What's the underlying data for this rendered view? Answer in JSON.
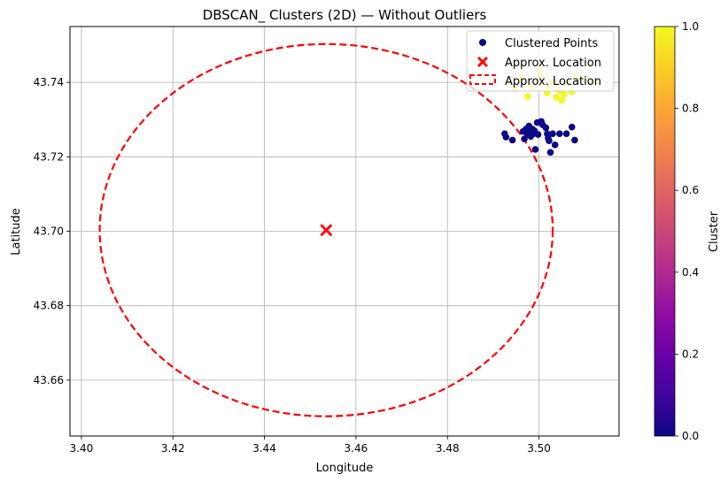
{
  "chart_data": {
    "type": "scatter",
    "title": "DBSCAN_ Clusters (2D) — Without Outliers",
    "xlabel": "Longitude",
    "ylabel": "Latitude",
    "xlim": [
      3.3975,
      3.5175
    ],
    "ylim": [
      43.645,
      43.755
    ],
    "xticks": [
      3.4,
      3.42,
      3.44,
      3.46,
      3.48,
      3.5
    ],
    "xtick_labels": [
      "3.40",
      "3.42",
      "3.44",
      "3.46",
      "3.48",
      "3.50"
    ],
    "yticks": [
      43.66,
      43.68,
      43.7,
      43.72,
      43.74
    ],
    "ytick_labels": [
      "43.66",
      "43.68",
      "43.70",
      "43.72",
      "43.74"
    ],
    "grid": true,
    "legend_position": "top-right",
    "legend": [
      {
        "label": "Clustered Points",
        "marker": "dot",
        "color": "#0d0887"
      },
      {
        "label": "Approx. Location",
        "marker": "x",
        "color": "#ff0000"
      },
      {
        "label": "Approx. Location",
        "marker": "dashed-ellipse",
        "color": "#ff0000"
      }
    ],
    "series": [
      {
        "name": "Clustered Points",
        "kind": "scatter",
        "points": [
          {
            "x": 3.4925,
            "y": 43.7262,
            "c": 0
          },
          {
            "x": 3.4928,
            "y": 43.7253,
            "c": 0
          },
          {
            "x": 3.4942,
            "y": 43.7245,
            "c": 0
          },
          {
            "x": 3.4965,
            "y": 43.7268,
            "c": 0
          },
          {
            "x": 3.4968,
            "y": 43.7248,
            "c": 0
          },
          {
            "x": 3.4972,
            "y": 43.7275,
            "c": 0
          },
          {
            "x": 3.4975,
            "y": 43.726,
            "c": 0
          },
          {
            "x": 3.4978,
            "y": 43.7283,
            "c": 0
          },
          {
            "x": 3.498,
            "y": 43.7266,
            "c": 0
          },
          {
            "x": 3.4982,
            "y": 43.7255,
            "c": 0
          },
          {
            "x": 3.4985,
            "y": 43.7275,
            "c": 0
          },
          {
            "x": 3.4988,
            "y": 43.7262,
            "c": 0
          },
          {
            "x": 3.499,
            "y": 43.727,
            "c": 0
          },
          {
            "x": 3.4992,
            "y": 43.722,
            "c": 0
          },
          {
            "x": 3.4996,
            "y": 43.7292,
            "c": 0
          },
          {
            "x": 3.4998,
            "y": 43.726,
            "c": 0
          },
          {
            "x": 3.5005,
            "y": 43.7295,
            "c": 0
          },
          {
            "x": 3.5008,
            "y": 43.7286,
            "c": 0
          },
          {
            "x": 3.5015,
            "y": 43.7278,
            "c": 0
          },
          {
            "x": 3.5018,
            "y": 43.7262,
            "c": 0
          },
          {
            "x": 3.502,
            "y": 43.725,
            "c": 0
          },
          {
            "x": 3.5022,
            "y": 43.7243,
            "c": 0
          },
          {
            "x": 3.5025,
            "y": 43.7212,
            "c": 0
          },
          {
            "x": 3.503,
            "y": 43.7262,
            "c": 0
          },
          {
            "x": 3.5035,
            "y": 43.7232,
            "c": 0
          },
          {
            "x": 3.5045,
            "y": 43.7262,
            "c": 0
          },
          {
            "x": 3.506,
            "y": 43.7262,
            "c": 0
          },
          {
            "x": 3.5072,
            "y": 43.728,
            "c": 0
          },
          {
            "x": 3.5078,
            "y": 43.7245,
            "c": 0
          },
          {
            "x": 3.4935,
            "y": 43.7402,
            "c": 1
          },
          {
            "x": 3.4948,
            "y": 43.7383,
            "c": 1
          },
          {
            "x": 3.4962,
            "y": 43.7415,
            "c": 1
          },
          {
            "x": 3.4975,
            "y": 43.7362,
            "c": 1
          },
          {
            "x": 3.4985,
            "y": 43.7388,
            "c": 1
          },
          {
            "x": 3.4992,
            "y": 43.7402,
            "c": 1
          },
          {
            "x": 3.5002,
            "y": 43.743,
            "c": 1
          },
          {
            "x": 3.5008,
            "y": 43.7412,
            "c": 1
          },
          {
            "x": 3.5018,
            "y": 43.7372,
            "c": 1
          },
          {
            "x": 3.5022,
            "y": 43.7388,
            "c": 1
          },
          {
            "x": 3.503,
            "y": 43.7402,
            "c": 1
          },
          {
            "x": 3.5038,
            "y": 43.736,
            "c": 1
          },
          {
            "x": 3.5045,
            "y": 43.7378,
            "c": 1
          },
          {
            "x": 3.505,
            "y": 43.7352,
            "c": 1
          },
          {
            "x": 3.5055,
            "y": 43.7368,
            "c": 1
          },
          {
            "x": 3.506,
            "y": 43.7398,
            "c": 1
          },
          {
            "x": 3.5072,
            "y": 43.7375,
            "c": 1
          },
          {
            "x": 3.508,
            "y": 43.7418,
            "c": 1
          },
          {
            "x": 3.51,
            "y": 43.741,
            "c": 1
          },
          {
            "x": 3.512,
            "y": 43.7402,
            "c": 1
          }
        ]
      },
      {
        "name": "Approx. Location",
        "kind": "marker",
        "x": 3.4535,
        "y": 43.7003,
        "color": "#ff0000"
      },
      {
        "name": "Approx. Location",
        "kind": "ellipse",
        "cx": 3.4535,
        "cy": 43.7003,
        "rx": 0.0495,
        "ry": 0.05,
        "color": "#ff0000",
        "dashed": true
      }
    ],
    "colorbar": {
      "label": "Cluster",
      "colormap": "plasma",
      "range": [
        0,
        1
      ],
      "ticks": [
        0.0,
        0.2,
        0.4,
        0.6,
        0.8,
        1.0
      ],
      "tick_labels": [
        "0.0",
        "0.2",
        "0.4",
        "0.6",
        "0.8",
        "1.0"
      ],
      "stops": [
        "#0d0887",
        "#41049d",
        "#6a00a8",
        "#8f0da4",
        "#b12a90",
        "#cc4778",
        "#e16462",
        "#f2844b",
        "#fca636",
        "#fcce25",
        "#f0f921"
      ]
    }
  }
}
